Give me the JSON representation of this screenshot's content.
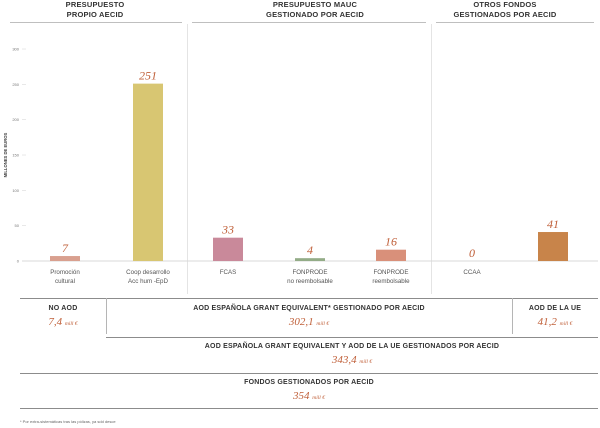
{
  "headers": {
    "left": [
      "PRESUPUESTO",
      "PROPIO AECID"
    ],
    "middle": [
      "PRESUPUESTO MAUC",
      "GESTIONADO POR AECID"
    ],
    "right": [
      "OTROS FONDOS",
      "GESTIONADOS POR AECID"
    ]
  },
  "chart_data": {
    "type": "bar",
    "ylabel": "MILLONES DE EUROS",
    "ylim": [
      0,
      300
    ],
    "yticks": [
      0,
      50,
      100,
      150,
      200,
      250,
      300
    ],
    "categories": [
      [
        "Promoción",
        "cultural"
      ],
      [
        "Coop desarrollo",
        "Acc hum -EpD"
      ],
      [
        "FCAS"
      ],
      [
        "FONPRODE",
        "no reembolsable"
      ],
      [
        "FONPRODE",
        "reembolsable"
      ],
      [
        "CCAA"
      ],
      [
        ""
      ]
    ],
    "values": [
      7,
      251,
      33,
      4,
      16,
      0,
      41
    ],
    "value_labels": [
      "7",
      "251",
      "33",
      "4",
      "16",
      "0",
      "41"
    ],
    "colors": [
      "#d9a08f",
      "#d8c672",
      "#c9899a",
      "#93ac87",
      "#d9907a",
      "#cccccc",
      "#c8844a"
    ]
  },
  "summary": {
    "no_aod": {
      "title": "NO AOD",
      "value": "7,4",
      "unit": "mill €"
    },
    "aod_grant": {
      "title": "AOD ESPAÑOLA GRANT EQUIVALENT* GESTIONADO POR AECID",
      "value": "302,1",
      "unit": "mill €"
    },
    "aod_ue": {
      "title": "AOD DE LA UE",
      "value": "41,2",
      "unit": "mill €"
    },
    "aod_total": {
      "title": "AOD ESPAÑOLA GRANT EQUIVALENT Y AOD DE LA UE GESTIONADOS POR AECID",
      "value": "343,4",
      "unit": "mill €"
    },
    "fondos": {
      "title": "FONDOS GESTIONADOS POR AECID",
      "value": "354",
      "unit": "mill €"
    }
  },
  "footnote": "* Por extra-sistemáticas tras las pólizas, ya sdd desce"
}
